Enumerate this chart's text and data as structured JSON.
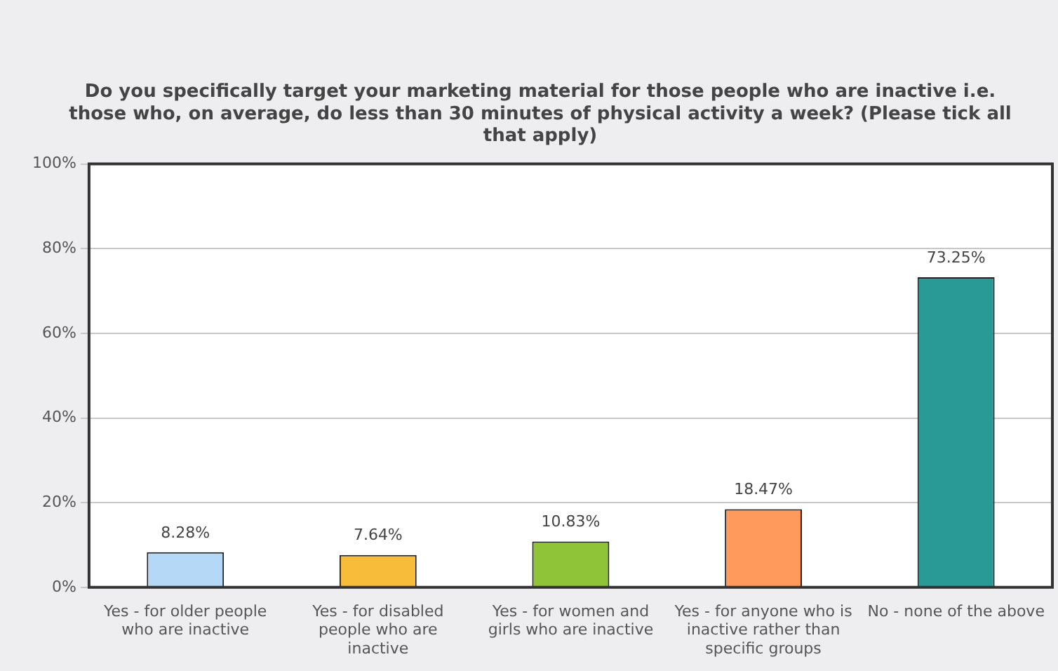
{
  "chart_data": {
    "type": "bar",
    "title": "Do you specifically target your marketing material for those people who are inactive i.e. those who, on average, do less than 30 minutes of physical activity a week? (Please tick all that apply)",
    "categories": [
      "Yes - for older people who are inactive",
      "Yes - for disabled people who are inactive",
      "Yes - for women and girls who are inactive",
      "Yes - for anyone who is inactive rather than specific groups",
      "No - none of the above"
    ],
    "values": [
      8.28,
      7.64,
      10.83,
      18.47,
      73.25
    ],
    "colors": [
      "#b4d8f6",
      "#f6bc3a",
      "#90c438",
      "#ff9a5c",
      "#2a9a96"
    ],
    "value_labels": [
      "8.28%",
      "7.64%",
      "10.83%",
      "18.47%",
      "73.25%"
    ],
    "ylim": [
      0,
      100
    ],
    "yticks": [
      {
        "value": 0,
        "label": "0%"
      },
      {
        "value": 20,
        "label": "20%"
      },
      {
        "value": 40,
        "label": "40%"
      },
      {
        "value": 60,
        "label": "60%"
      },
      {
        "value": 80,
        "label": "80%"
      },
      {
        "value": 100,
        "label": "100%"
      }
    ],
    "grid": "y"
  }
}
